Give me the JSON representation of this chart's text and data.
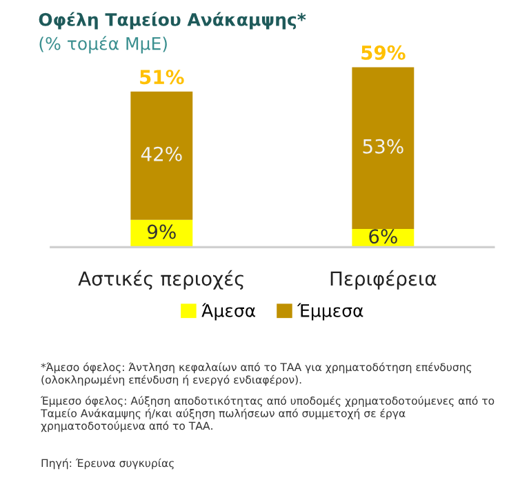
{
  "chart_data": {
    "type": "bar",
    "title": "Οφέλη Ταμείου Ανάκαμψης*",
    "subtitle": "(% τομέα ΜμΕ)",
    "categories": [
      "Αστικές περιοχές",
      "Περιφέρεια"
    ],
    "stacked": true,
    "series": [
      {
        "name": "Άμεσα",
        "color": "#ffff00",
        "values": [
          9,
          6
        ],
        "value_labels": [
          "9%",
          "6%"
        ]
      },
      {
        "name": "Έμμεσα",
        "color": "#bf9000",
        "values": [
          42,
          53
        ],
        "value_labels": [
          "42%",
          "53%"
        ]
      }
    ],
    "totals": [
      "51%",
      "59%"
    ],
    "legend": "bottom",
    "grid": false,
    "annotations": [
      "*Άμεσο όφελος: Άντληση κεφαλαίων από το ΤΑΑ για χρηματοδότηση επένδυσης (ολοκληρωμένη επένδυση ή ενεργό ενδιαφέρον).",
      "Έμμεσο όφελος: Αύξηση αποδοτικότητας από υποδομές χρηματοδοτούμενες από το Ταμείο Ανάκαμψης ή/και αύξηση πωλήσεων από συμμετοχή σε έργα χρηματοδοτούμενα από το ΤΑΑ.",
      "Πηγή: Έρευνα συγκυρίας"
    ]
  }
}
